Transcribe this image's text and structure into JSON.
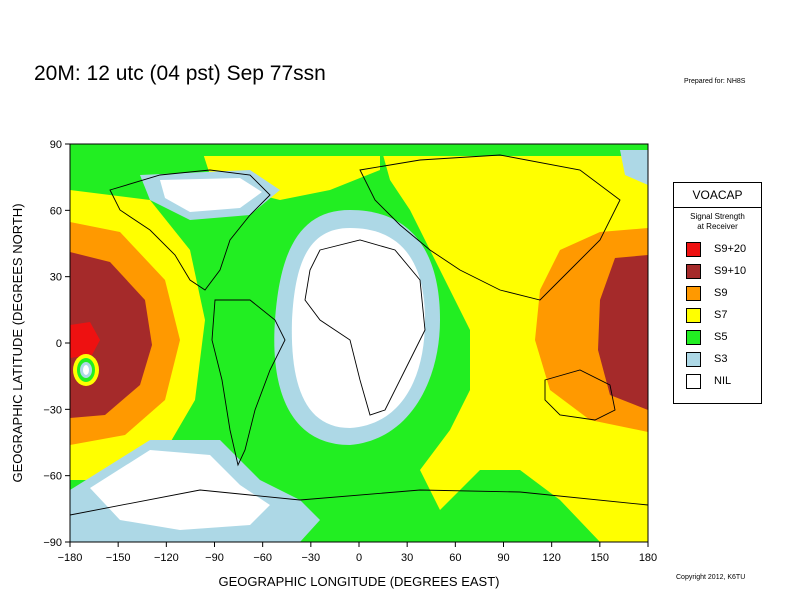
{
  "title": "20M:  12 utc (04 pst) Sep 77ssn",
  "prepared_for": "Prepared for: NH8S",
  "copyright": "Copyright 2012, K6TU",
  "legend": {
    "heading": "VOACAP",
    "subtitle_line1": "Signal Strength",
    "subtitle_line2": "at Receiver",
    "items": [
      {
        "label": "S9+20",
        "color": "#ee1111"
      },
      {
        "label": "S9+10",
        "color": "#a52a2a"
      },
      {
        "label": "S9",
        "color": "#ff9900"
      },
      {
        "label": "S7",
        "color": "#ffff00"
      },
      {
        "label": "S5",
        "color": "#22ee22"
      },
      {
        "label": "S3",
        "color": "#add8e6"
      },
      {
        "label": "NIL",
        "color": "#ffffff"
      }
    ]
  },
  "map": {
    "xlabel": "GEOGRAPHIC LONGITUDE (DEGREES EAST)",
    "ylabel": "GEOGRAPHIC LATITUDE (DEGREES NORTH)",
    "xlim": [
      -180,
      180
    ],
    "ylim": [
      -90,
      90
    ],
    "xticks": [
      "−180",
      "−150",
      "−120",
      "−90",
      "−60",
      "−30",
      "0",
      "30",
      "60",
      "90",
      "120",
      "150",
      "180"
    ],
    "yticks": [
      "90",
      "60",
      "30",
      "0",
      "−30",
      "−60",
      "−90"
    ]
  }
}
